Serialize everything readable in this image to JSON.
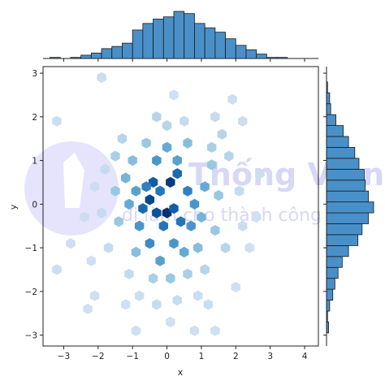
{
  "chart_data": {
    "type": "jointplot-hexbin",
    "xlabel": "x",
    "ylabel": "y",
    "xlim": [
      -3.6,
      4.4
    ],
    "ylim": [
      -3.25,
      3.15
    ],
    "x_ticks": [
      -3,
      -2,
      -1,
      0,
      1,
      2,
      3,
      4
    ],
    "y_ticks": [
      -3,
      -2,
      -1,
      0,
      1,
      2,
      3
    ],
    "main": {
      "kind": "hexbin",
      "colormap": "Blues",
      "hexbins": [
        {
          "x": -0.5,
          "y": 0.1,
          "level": 0.9
        },
        {
          "x": -0.4,
          "y": 0.5,
          "level": 0.8
        },
        {
          "x": -0.2,
          "y": 0.3,
          "level": 0.7
        },
        {
          "x": 0.1,
          "y": 0.5,
          "level": 0.95
        },
        {
          "x": 0.3,
          "y": 0.7,
          "level": 0.75
        },
        {
          "x": 0.0,
          "y": -0.2,
          "level": 1.0
        },
        {
          "x": 0.2,
          "y": -0.1,
          "level": 0.8
        },
        {
          "x": -0.3,
          "y": -0.2,
          "level": 0.85
        },
        {
          "x": -0.1,
          "y": -0.5,
          "level": 0.7
        },
        {
          "x": 0.6,
          "y": 0.3,
          "level": 0.65
        },
        {
          "x": 0.4,
          "y": -0.4,
          "level": 0.7
        },
        {
          "x": -0.7,
          "y": -0.1,
          "level": 0.75
        },
        {
          "x": -0.6,
          "y": 0.4,
          "level": 0.65
        },
        {
          "x": 0.8,
          "y": 0.0,
          "level": 0.55
        },
        {
          "x": 0.7,
          "y": -0.5,
          "level": 0.55
        },
        {
          "x": -0.8,
          "y": -0.5,
          "level": 0.55
        },
        {
          "x": -0.9,
          "y": 0.3,
          "level": 0.5
        },
        {
          "x": 0.3,
          "y": 1.0,
          "level": 0.5
        },
        {
          "x": -0.3,
          "y": 1.0,
          "level": 0.55
        },
        {
          "x": 0.0,
          "y": 1.3,
          "level": 0.45
        },
        {
          "x": -0.5,
          "y": -0.9,
          "level": 0.6
        },
        {
          "x": 0.2,
          "y": -0.9,
          "level": 0.55
        },
        {
          "x": 0.5,
          "y": -1.1,
          "level": 0.45
        },
        {
          "x": -0.2,
          "y": -1.3,
          "level": 0.5
        },
        {
          "x": -1.1,
          "y": 0.0,
          "level": 0.45
        },
        {
          "x": -1.2,
          "y": 0.6,
          "level": 0.4
        },
        {
          "x": 1.1,
          "y": 0.4,
          "level": 0.45
        },
        {
          "x": 1.0,
          "y": -0.3,
          "level": 0.4
        },
        {
          "x": 1.3,
          "y": 0.9,
          "level": 0.3
        },
        {
          "x": -1.0,
          "y": 1.0,
          "level": 0.35
        },
        {
          "x": 0.6,
          "y": 1.4,
          "level": 0.35
        },
        {
          "x": -0.6,
          "y": 1.4,
          "level": 0.3
        },
        {
          "x": 0.9,
          "y": -1.0,
          "level": 0.35
        },
        {
          "x": -0.9,
          "y": -1.1,
          "level": 0.35
        },
        {
          "x": 0.1,
          "y": -1.7,
          "level": 0.3
        },
        {
          "x": -0.4,
          "y": -1.7,
          "level": 0.25
        },
        {
          "x": 0.6,
          "y": -1.6,
          "level": 0.25
        },
        {
          "x": -1.4,
          "y": -0.4,
          "level": 0.3
        },
        {
          "x": 1.4,
          "y": -0.6,
          "level": 0.3
        },
        {
          "x": 1.5,
          "y": 0.2,
          "level": 0.3
        },
        {
          "x": -1.5,
          "y": 0.3,
          "level": 0.3
        },
        {
          "x": 0.0,
          "y": 1.8,
          "level": 0.2
        },
        {
          "x": -0.3,
          "y": 2.0,
          "level": 0.2
        },
        {
          "x": 0.5,
          "y": 1.9,
          "level": 0.15
        },
        {
          "x": 1.6,
          "y": 1.6,
          "level": 0.2
        },
        {
          "x": 1.8,
          "y": 1.1,
          "level": 0.2
        },
        {
          "x": 2.1,
          "y": 0.3,
          "level": 0.15
        },
        {
          "x": -1.8,
          "y": 0.8,
          "level": 0.15
        },
        {
          "x": -1.9,
          "y": -0.2,
          "level": 0.15
        },
        {
          "x": -1.7,
          "y": -1.0,
          "level": 0.15
        },
        {
          "x": 1.7,
          "y": -1.0,
          "level": 0.2
        },
        {
          "x": 1.1,
          "y": -1.5,
          "level": 0.2
        },
        {
          "x": -1.1,
          "y": -1.6,
          "level": 0.15
        },
        {
          "x": 0.3,
          "y": -2.2,
          "level": 0.15
        },
        {
          "x": -0.3,
          "y": -2.3,
          "level": 0.15
        },
        {
          "x": 0.9,
          "y": -2.1,
          "level": 0.12
        },
        {
          "x": -0.8,
          "y": -2.1,
          "level": 0.12
        },
        {
          "x": 1.2,
          "y": -2.3,
          "level": 0.12
        },
        {
          "x": -3.2,
          "y": 1.9,
          "level": 0.12
        },
        {
          "x": -1.9,
          "y": 2.9,
          "level": 0.12
        },
        {
          "x": 0.2,
          "y": 2.5,
          "level": 0.1
        },
        {
          "x": 1.9,
          "y": 2.4,
          "level": 0.12
        },
        {
          "x": 2.2,
          "y": 1.9,
          "level": 0.12
        },
        {
          "x": 2.7,
          "y": 0.7,
          "level": 0.12
        },
        {
          "x": 2.6,
          "y": -0.3,
          "level": 0.1
        },
        {
          "x": 2.4,
          "y": -1.0,
          "level": 0.1
        },
        {
          "x": -2.4,
          "y": -0.3,
          "level": 0.12
        },
        {
          "x": -2.8,
          "y": -0.9,
          "level": 0.1
        },
        {
          "x": -3.2,
          "y": -1.5,
          "level": 0.12
        },
        {
          "x": -2.2,
          "y": -1.3,
          "level": 0.1
        },
        {
          "x": -2.1,
          "y": -2.1,
          "level": 0.1
        },
        {
          "x": -2.3,
          "y": -2.4,
          "level": 0.1
        },
        {
          "x": -1.2,
          "y": -2.3,
          "level": 0.1
        },
        {
          "x": -0.9,
          "y": -2.9,
          "level": 0.1
        },
        {
          "x": 0.1,
          "y": -2.7,
          "level": 0.1
        },
        {
          "x": 0.8,
          "y": -2.9,
          "level": 0.1
        },
        {
          "x": 1.4,
          "y": -2.9,
          "level": 0.1
        },
        {
          "x": 2.0,
          "y": -1.9,
          "level": 0.1
        },
        {
          "x": 1.4,
          "y": 2.0,
          "level": 0.15
        },
        {
          "x": -1.3,
          "y": 1.5,
          "level": 0.2
        },
        {
          "x": -1.5,
          "y": 1.1,
          "level": 0.25
        },
        {
          "x": 1.3,
          "y": 1.3,
          "level": 0.25
        },
        {
          "x": -2.1,
          "y": 0.4,
          "level": 0.12
        },
        {
          "x": 2.2,
          "y": -0.5,
          "level": 0.12
        }
      ]
    },
    "marginal_x": {
      "kind": "histogram",
      "bin_edges": [
        -3.4,
        -3.1,
        -2.8,
        -2.5,
        -2.2,
        -1.9,
        -1.6,
        -1.3,
        -1.0,
        -0.7,
        -0.4,
        -0.1,
        0.2,
        0.5,
        0.8,
        1.1,
        1.4,
        1.7,
        2.0,
        2.3,
        2.6,
        2.9,
        3.2,
        3.5
      ],
      "counts": [
        1,
        0,
        1,
        3,
        5,
        9,
        11,
        14,
        26,
        32,
        36,
        38,
        43,
        41,
        32,
        28,
        24,
        18,
        12,
        8,
        4,
        1,
        1
      ]
    },
    "marginal_y": {
      "kind": "histogram",
      "bin_edges": [
        -2.95,
        -2.7,
        -2.45,
        -2.2,
        -1.95,
        -1.7,
        -1.45,
        -1.2,
        -0.95,
        -0.7,
        -0.45,
        -0.2,
        0.05,
        0.3,
        0.55,
        0.8,
        1.05,
        1.3,
        1.55,
        1.8,
        2.05,
        2.3,
        2.55,
        2.8
      ],
      "counts": [
        2,
        1,
        3,
        6,
        8,
        11,
        15,
        21,
        30,
        34,
        40,
        45,
        40,
        37,
        36,
        31,
        27,
        21,
        16,
        9,
        4,
        3,
        1
      ]
    },
    "colors": {
      "bar_fill": "#4a90c8",
      "bar_edge": "#1a1a1a",
      "hex_light": "#deebf7",
      "hex_dark": "#08306b"
    }
  }
}
